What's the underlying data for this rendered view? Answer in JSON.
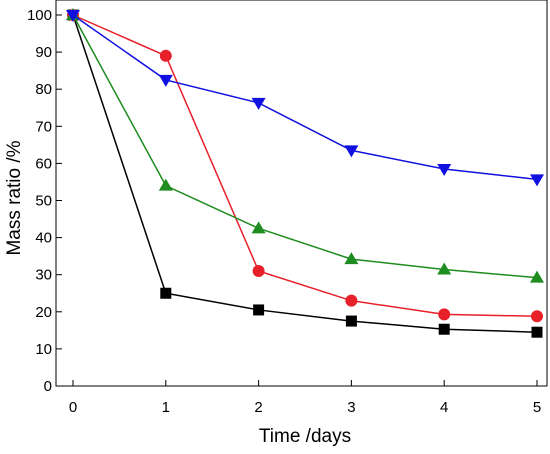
{
  "chart_data": {
    "type": "line",
    "title": "",
    "xlabel": "Time /days",
    "ylabel": "Mass ratio /%",
    "xlim": [
      0,
      5
    ],
    "ylim": [
      0,
      100
    ],
    "x_ticks": [
      0,
      1,
      2,
      3,
      4,
      5
    ],
    "y_ticks": [
      0,
      10,
      20,
      30,
      40,
      50,
      60,
      70,
      80,
      90,
      100
    ],
    "grid": false,
    "legend": "none",
    "x": [
      0,
      1,
      2,
      3,
      4,
      5
    ],
    "series": [
      {
        "marker": "square",
        "color": "#000000",
        "values": [
          100,
          25,
          20.5,
          17.5,
          15.3,
          14.5
        ]
      },
      {
        "marker": "circle",
        "color": "#e8202a",
        "line_color": "#e8202a",
        "values": [
          100,
          89,
          31,
          23,
          19.3,
          18.8
        ]
      },
      {
        "marker": "triangle-up",
        "color": "#1e8c1e",
        "values": [
          100,
          54,
          42.5,
          34.2,
          31.4,
          29.2
        ]
      },
      {
        "marker": "triangle-down",
        "color": "#1010e0",
        "values": [
          100,
          82.5,
          76.3,
          63.5,
          58.5,
          55.7
        ]
      }
    ]
  }
}
